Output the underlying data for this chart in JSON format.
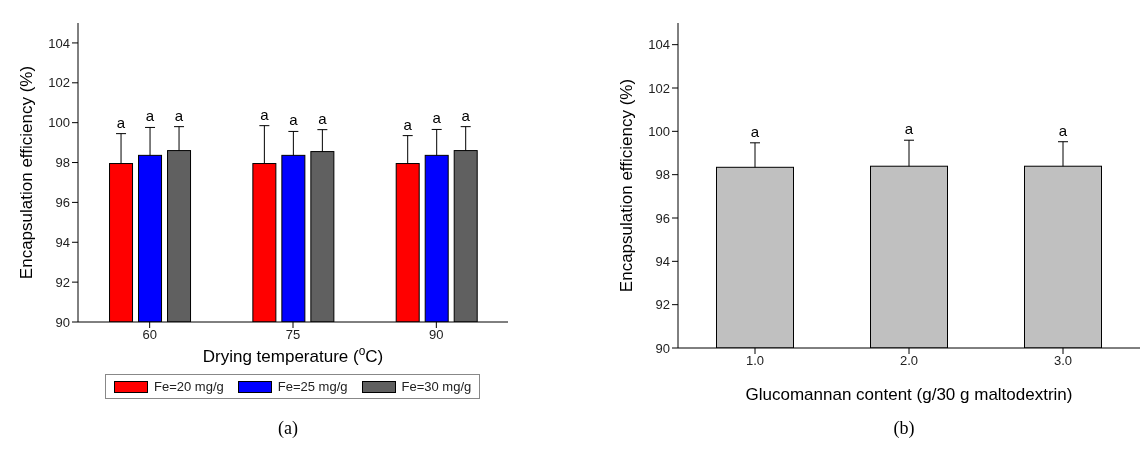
{
  "chart_data": [
    {
      "type": "bar",
      "categories": [
        "60",
        "75",
        "90"
      ],
      "xlabel": "Drying temperature ($^{o}$C)",
      "ylabel": "Encapsulation efficiency (%)",
      "ylim": [
        90,
        105
      ],
      "yticks": [
        90,
        92,
        94,
        96,
        98,
        100,
        102,
        104
      ],
      "legend": "bottom",
      "grid": false,
      "annotations": [
        "(a)"
      ],
      "series": [
        {
          "name": "Fe=20 mg/g",
          "color": "#ff0000",
          "values": [
            97.95,
            97.95,
            97.95
          ],
          "errors": [
            1.5,
            1.9,
            1.4
          ],
          "value_labels": [
            "a",
            "a",
            "a"
          ]
        },
        {
          "name": "Fe=25 mg/g",
          "color": "#0000ff",
          "values": [
            98.36,
            98.36,
            98.36
          ],
          "errors": [
            1.4,
            1.2,
            1.3
          ],
          "value_labels": [
            "a",
            "a",
            "a"
          ]
        },
        {
          "name": "Fe=30 mg/g",
          "color": "#606060",
          "values": [
            98.6,
            98.55,
            98.6
          ],
          "errors": [
            1.2,
            1.1,
            1.2
          ],
          "value_labels": [
            "a",
            "a",
            "a"
          ]
        }
      ]
    },
    {
      "type": "bar",
      "categories": [
        "1.0",
        "2.0",
        "3.0"
      ],
      "xlabel": "Glucomannan content (g/30 g maltodextrin)",
      "ylabel": "Encapsulation efficiency (%)",
      "ylim": [
        90,
        105
      ],
      "yticks": [
        90,
        92,
        94,
        96,
        98,
        100,
        102,
        104
      ],
      "legend": false,
      "grid": false,
      "annotations": [
        "(b)"
      ],
      "color": "#c0c0c0",
      "values": [
        98.34,
        98.39,
        98.39
      ],
      "errors": [
        1.13,
        1.2,
        1.13
      ],
      "value_labels": [
        "a",
        "a",
        "a"
      ]
    }
  ]
}
